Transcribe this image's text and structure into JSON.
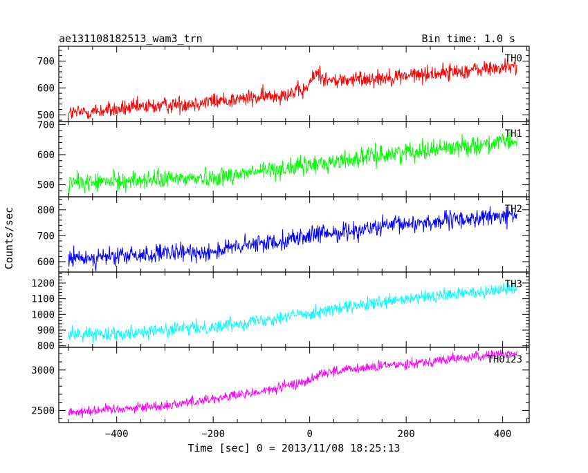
{
  "header": {
    "title": "ae131108182513_wam3_trn",
    "bin_time": "Bin time: 1.0 s"
  },
  "chart_data": {
    "type": "line",
    "xlabel": "Time [sec] 0 = 2013/11/08 18:25:13",
    "ylabel": "Counts/sec",
    "xlim": [
      -520,
      455
    ],
    "x_range": [
      -500,
      430
    ],
    "x_step": 1.0,
    "x_ticks": [
      -400,
      -200,
      0,
      200,
      400
    ],
    "x_tick_labels": [
      "−400",
      "−200",
      "0",
      "200",
      "400"
    ],
    "grid": false,
    "panels": [
      {
        "name": "TH0",
        "color": "#ff0000",
        "ylim": [
          475,
          755
        ],
        "y_ticks": [
          500,
          600,
          700
        ],
        "y_tick_labels": [
          "500",
          "600",
          "700"
        ],
        "trend": [
          [
            -500,
            505
          ],
          [
            -100,
            565
          ],
          [
            -10,
            590
          ],
          [
            15,
            660
          ],
          [
            40,
            625
          ],
          [
            200,
            645
          ],
          [
            430,
            680
          ]
        ],
        "noise": 22
      },
      {
        "name": "TH1",
        "color": "#00ff00",
        "ylim": [
          460,
          710
        ],
        "y_ticks": [
          500,
          600,
          700
        ],
        "y_tick_labels": [
          "500",
          "600",
          "700"
        ],
        "trend": [
          [
            -500,
            505
          ],
          [
            -200,
            525
          ],
          [
            0,
            565
          ],
          [
            200,
            610
          ],
          [
            430,
            645
          ]
        ],
        "noise": 22
      },
      {
        "name": "TH2",
        "color": "#0000ff",
        "ylim": [
          560,
          850
        ],
        "y_ticks": [
          600,
          700,
          800
        ],
        "y_tick_labels": [
          "600",
          "700",
          "800"
        ],
        "trend": [
          [
            -500,
            610
          ],
          [
            -200,
            640
          ],
          [
            0,
            700
          ],
          [
            200,
            745
          ],
          [
            430,
            780
          ]
        ],
        "noise": 25
      },
      {
        "name": "TH3",
        "color": "#00ffff",
        "ylim": [
          790,
          1270
        ],
        "y_ticks": [
          800,
          900,
          1000,
          1100,
          1200
        ],
        "y_tick_labels": [
          "800",
          "900",
          "1000",
          "1100",
          "1200"
        ],
        "trend": [
          [
            -500,
            870
          ],
          [
            -400,
            880
          ],
          [
            -200,
            920
          ],
          [
            0,
            1010
          ],
          [
            200,
            1095
          ],
          [
            430,
            1170
          ]
        ],
        "noise": 30
      },
      {
        "name": "TH0123",
        "color": "#ff00ff",
        "ylim": [
          2350,
          3280
        ],
        "y_ticks": [
          2500,
          3000
        ],
        "y_tick_labels": [
          "2500",
          "3000"
        ],
        "trend": [
          [
            -500,
            2480
          ],
          [
            -300,
            2560
          ],
          [
            -100,
            2730
          ],
          [
            0,
            2870
          ],
          [
            20,
            2960
          ],
          [
            200,
            3080
          ],
          [
            430,
            3210
          ]
        ],
        "noise": 45
      }
    ]
  }
}
